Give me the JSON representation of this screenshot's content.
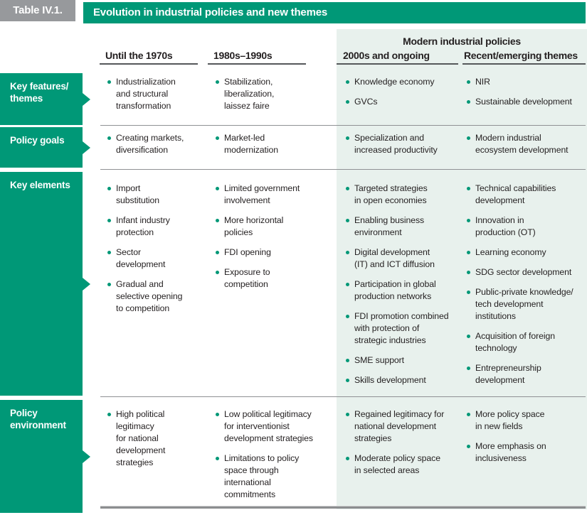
{
  "title_block": {
    "table_label": "Table IV.1.",
    "table_title": "Evolution in industrial policies and new themes"
  },
  "columns": {
    "group_header": "Modern industrial policies",
    "headers": [
      "Until the 1970s",
      "1980s–1990s",
      "2000s and ongoing",
      "Recent/emerging themes"
    ]
  },
  "rows": [
    {
      "label": "Key features/\nthemes",
      "cells": [
        [
          "Industrialization\nand structural\ntransformation"
        ],
        [
          "Stabilization,\nliberalization,\nlaissez faire"
        ],
        [
          "Knowledge economy",
          "GVCs"
        ],
        [
          "NIR",
          "Sustainable development"
        ]
      ]
    },
    {
      "label": "Policy goals",
      "cells": [
        [
          "Creating markets,\ndiversification"
        ],
        [
          "Market-led\nmodernization"
        ],
        [
          "Specialization and\nincreased productivity"
        ],
        [
          "Modern industrial\necosystem development"
        ]
      ]
    },
    {
      "label": "Key elements",
      "cells": [
        [
          "Import\nsubstitution",
          "Infant industry\nprotection",
          "Sector\ndevelopment",
          "Gradual and\nselective opening\nto competition"
        ],
        [
          "Limited government\ninvolvement",
          "More horizontal\npolicies",
          "FDI opening",
          "Exposure to\ncompetition"
        ],
        [
          "Targeted strategies\nin open economies",
          "Enabling business\nenvironment",
          "Digital development\n(IT) and ICT diffusion",
          "Participation in global\nproduction networks",
          "FDI promotion combined\nwith protection of\nstrategic industries",
          "SME support",
          "Skills development"
        ],
        [
          "Technical capabilities\ndevelopment",
          "Innovation in\nproduction (OT)",
          "Learning economy",
          "SDG sector development",
          "Public-private knowledge/\ntech development\ninstitutions",
          "Acquisition of foreign\ntechnology",
          "Entrepreneurship\ndevelopment"
        ]
      ]
    },
    {
      "label": "Policy\nenvironment",
      "cells": [
        [
          "High political\nlegitimacy\nfor national\ndevelopment\nstrategies"
        ],
        [
          "Low political legitimacy\nfor interventionist\ndevelopment strategies",
          "Limitations to policy\nspace through\ninternational\ncommitments"
        ],
        [
          "Regained legitimacy for\nnational development\nstrategies",
          "Moderate policy space\nin selected areas"
        ],
        [
          "More policy space\nin new fields",
          "More emphasis on\ninclusiveness"
        ]
      ]
    }
  ],
  "colors": {
    "teal": "#009877",
    "mint": "#E8F1ED",
    "gray_label_box": "#97999C",
    "body_text": "#231F20",
    "header_underline": "#55585A",
    "row_divider": "#8F9194"
  }
}
